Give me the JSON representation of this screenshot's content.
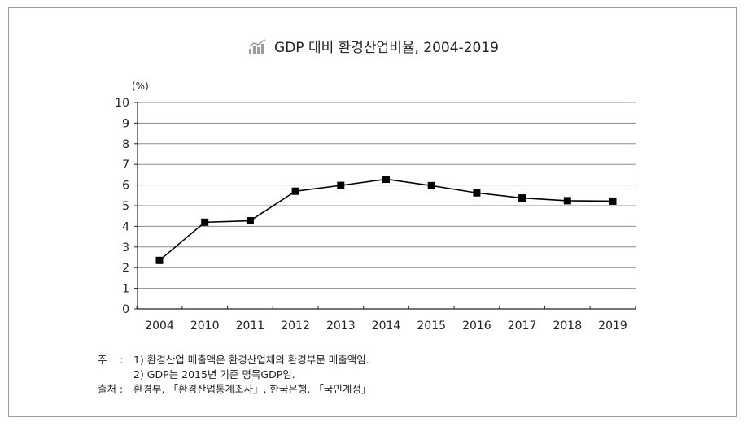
{
  "title": "GDP 대비 환경산업비율, 2004-2019",
  "icon": "bar-chart-trend-icon",
  "chart_data": {
    "type": "line",
    "title": "GDP 대비 환경산업비율, 2004-2019",
    "unit_label": "(%)",
    "categories": [
      "2004",
      "2010",
      "2011",
      "2012",
      "2013",
      "2014",
      "2015",
      "2016",
      "2017",
      "2018",
      "2019"
    ],
    "values": [
      2.35,
      4.2,
      4.27,
      5.7,
      5.98,
      6.28,
      5.97,
      5.62,
      5.37,
      5.24,
      5.22
    ],
    "yticks": [
      "0",
      "1",
      "2",
      "3",
      "4",
      "5",
      "6",
      "7",
      "8",
      "9",
      "10"
    ],
    "ylim": [
      0,
      10
    ],
    "grid": true,
    "marker": "square",
    "color": "#000000"
  },
  "notes": {
    "note_label": "주",
    "note_sep": ":",
    "note1": "1) 환경산업 매출액은 환경산업체의 환경부문 매출액임.",
    "note2": "2) GDP는 2015년 기준 명목GDP임.",
    "source_label": "출처 :",
    "source": "환경부, 「환경산업통계조사」, 한국은행, 「국민계정」"
  }
}
